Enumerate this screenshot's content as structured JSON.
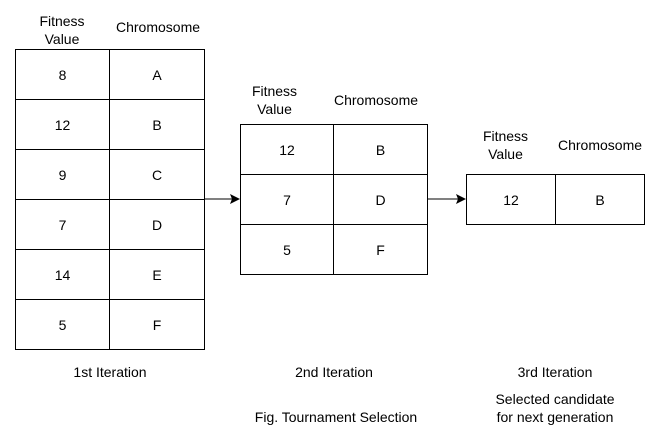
{
  "tables": [
    {
      "header_fitness": [
        "Fitness",
        "Value"
      ],
      "header_chromosome": "Chromosome",
      "rows": [
        {
          "fitness": "8",
          "chromosome": "A"
        },
        {
          "fitness": "12",
          "chromosome": "B"
        },
        {
          "fitness": "9",
          "chromosome": "C"
        },
        {
          "fitness": "7",
          "chromosome": "D"
        },
        {
          "fitness": "14",
          "chromosome": "E"
        },
        {
          "fitness": "5",
          "chromosome": "F"
        }
      ],
      "caption": "1st Iteration"
    },
    {
      "header_fitness": [
        "Fitness",
        "Value"
      ],
      "header_chromosome": "Chromosome",
      "rows": [
        {
          "fitness": "12",
          "chromosome": "B"
        },
        {
          "fitness": "7",
          "chromosome": "D"
        },
        {
          "fitness": "5",
          "chromosome": "F"
        }
      ],
      "caption": "2nd Iteration"
    },
    {
      "header_fitness": [
        "Fitness",
        "Value"
      ],
      "header_chromosome": "Chromosome",
      "rows": [
        {
          "fitness": "12",
          "chromosome": "B"
        }
      ],
      "caption": "3rd Iteration",
      "sub_caption": [
        "Selected candidate",
        "for next generation"
      ]
    }
  ],
  "figure_caption": "Fig. Tournament Selection",
  "colors": {
    "line": "#000000",
    "background": "#ffffff"
  }
}
